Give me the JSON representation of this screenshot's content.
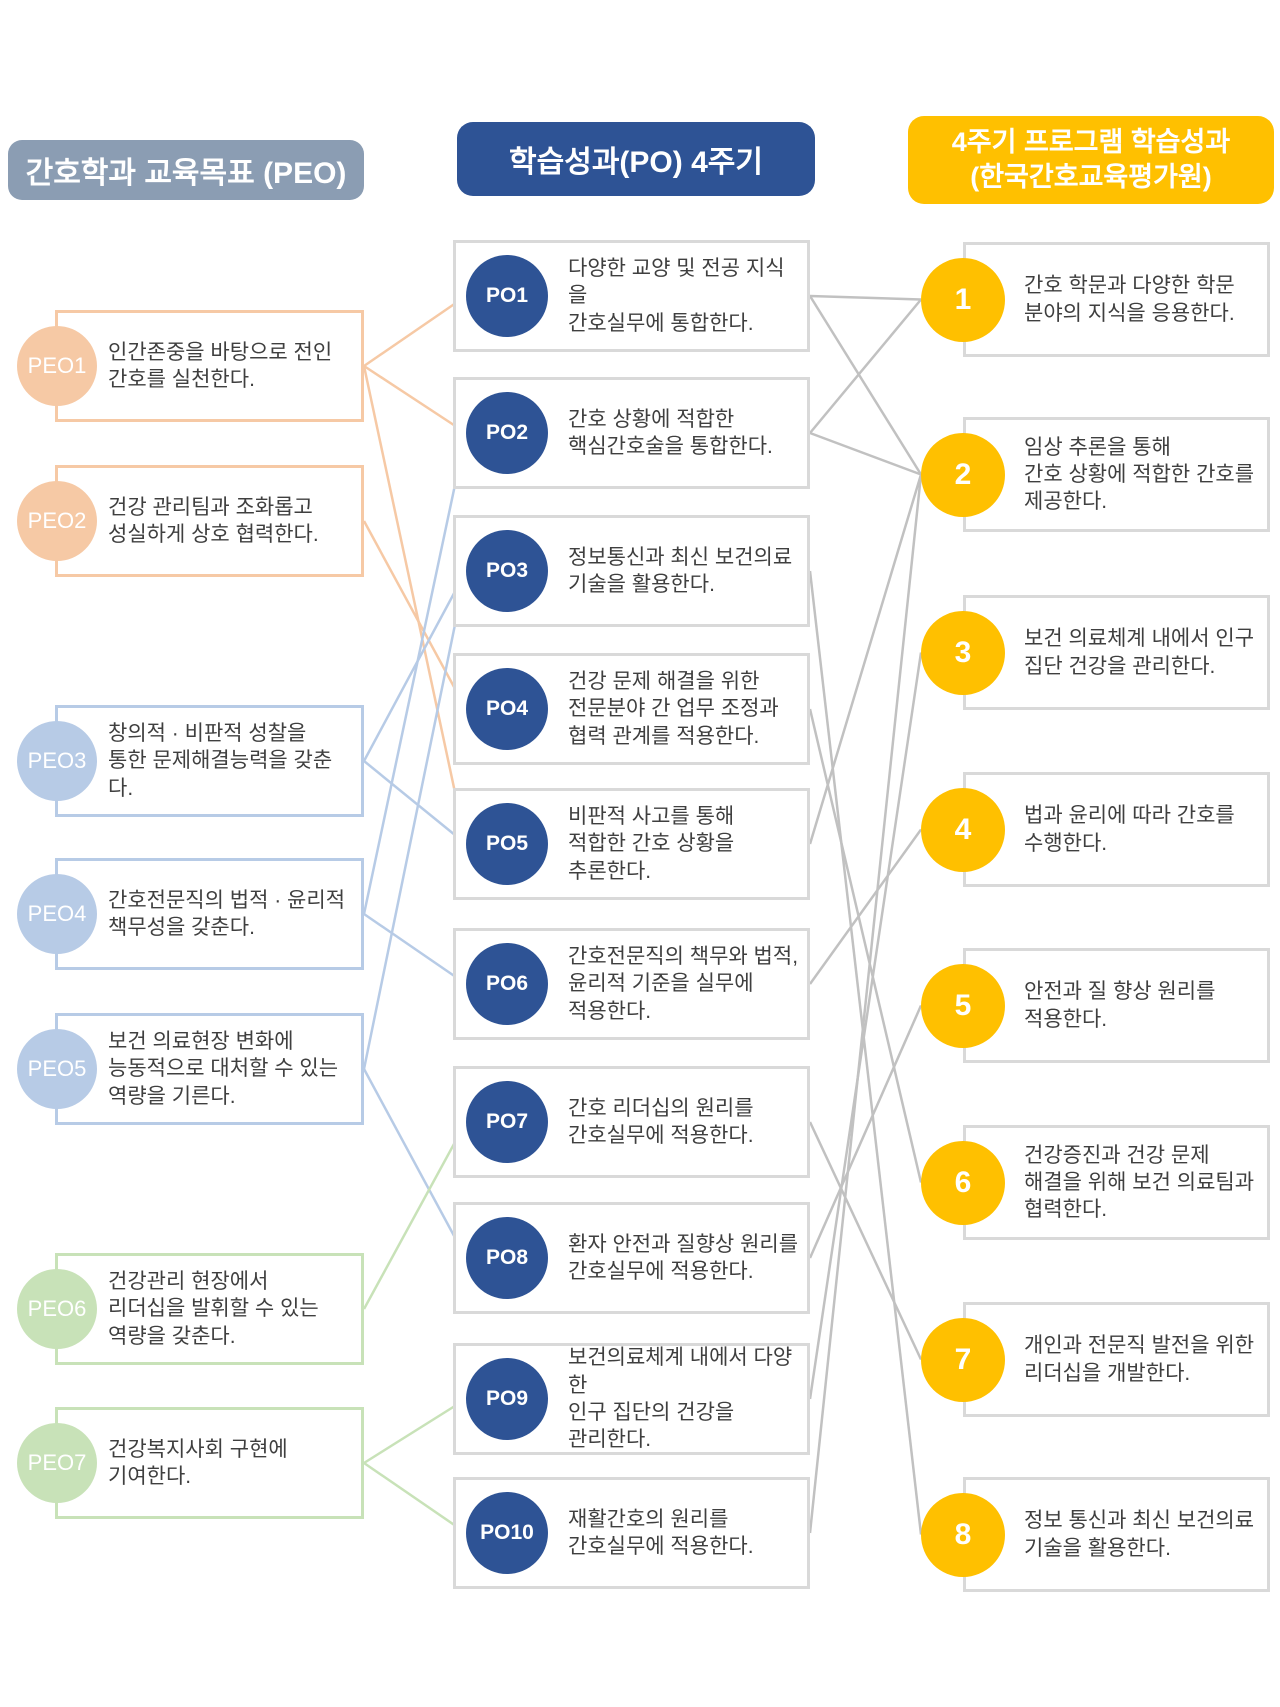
{
  "headers": {
    "peo": "간호학과 교육목표 (PEO)",
    "po": "학습성과(PO) 4주기",
    "program": "4주기 프로그램 학습성과\n(한국간호교육평가원)"
  },
  "palette": {
    "peo_header_bg": "#8B9DB3",
    "po_header_bg": "#2E5395",
    "program_header_bg": "#FFC000",
    "po_circle_fill": "#2E5395",
    "outcome_circle_fill": "#FFC000",
    "peo_orange": "#F6C9A5",
    "peo_blue": "#B7CBE6",
    "peo_green": "#C8E2B8",
    "gray_line": "#C1C1C1",
    "gray_box_border": "#D9D9D9",
    "text_color": "#3F3F3F"
  },
  "peo_items": [
    {
      "id": "PEO1",
      "group": "orange",
      "text": "인간존중을 바탕으로 전인\n간호를 실천한다."
    },
    {
      "id": "PEO2",
      "group": "orange",
      "text": "건강 관리팀과 조화롭고\n성실하게 상호 협력한다."
    },
    {
      "id": "PEO3",
      "group": "blue",
      "text": "창의적 · 비판적 성찰을\n통한 문제해결능력을 갖춘다."
    },
    {
      "id": "PEO4",
      "group": "blue",
      "text": "간호전문직의 법적 · 윤리적\n책무성을 갖춘다."
    },
    {
      "id": "PEO5",
      "group": "blue",
      "text": "보건 의료현장 변화에\n능동적으로 대처할 수 있는\n역량을 기른다."
    },
    {
      "id": "PEO6",
      "group": "green",
      "text": "건강관리 현장에서\n리더십을 발휘할 수 있는\n역량을 갖춘다."
    },
    {
      "id": "PEO7",
      "group": "green",
      "text": "건강복지사회 구현에\n기여한다."
    }
  ],
  "po_items": [
    {
      "id": "PO1",
      "text": "다양한 교양 및 전공 지식을\n간호실무에 통합한다."
    },
    {
      "id": "PO2",
      "text": "간호 상황에 적합한\n핵심간호술을 통합한다."
    },
    {
      "id": "PO3",
      "text": "정보통신과 최신 보건의료\n기술을 활용한다."
    },
    {
      "id": "PO4",
      "text": "건강 문제 해결을 위한\n전문분야 간 업무 조정과\n협력 관계를 적용한다."
    },
    {
      "id": "PO5",
      "text": "비판적 사고를 통해\n적합한 간호 상황을\n추론한다."
    },
    {
      "id": "PO6",
      "text": "간호전문직의 책무와 법적,\n윤리적 기준을 실무에\n적용한다."
    },
    {
      "id": "PO7",
      "text": "간호 리더십의 원리를\n간호실무에 적용한다."
    },
    {
      "id": "PO8",
      "text": "환자 안전과 질향상 원리를\n간호실무에 적용한다."
    },
    {
      "id": "PO9",
      "text": "보건의료체계 내에서 다양한\n인구 집단의 건강을\n관리한다."
    },
    {
      "id": "PO10",
      "text": "재활간호의 원리를\n간호실무에 적용한다."
    }
  ],
  "outcome_items": [
    {
      "id": "1",
      "text": "간호 학문과 다양한 학문\n분야의 지식을 응용한다."
    },
    {
      "id": "2",
      "text": "임상 추론을 통해\n간호 상황에 적합한 간호를\n제공한다."
    },
    {
      "id": "3",
      "text": "보건 의료체계 내에서 인구\n집단 건강을 관리한다."
    },
    {
      "id": "4",
      "text": "법과 윤리에 따라 간호를\n수행한다."
    },
    {
      "id": "5",
      "text": "안전과 질 향상 원리를\n적용한다."
    },
    {
      "id": "6",
      "text": "건강증진과 건강 문제\n해결을 위해 보건 의료팀과\n협력한다."
    },
    {
      "id": "7",
      "text": "개인과 전문직 발전을 위한\n리더십을 개발한다."
    },
    {
      "id": "8",
      "text": "정보 통신과 최신 보건의료\n기술을 활용한다."
    }
  ],
  "connections": {
    "peo_to_po": [
      [
        "PEO1",
        "PO1"
      ],
      [
        "PEO1",
        "PO2"
      ],
      [
        "PEO1",
        "PO5"
      ],
      [
        "PEO2",
        "PO4"
      ],
      [
        "PEO3",
        "PO3"
      ],
      [
        "PEO3",
        "PO5"
      ],
      [
        "PEO4",
        "PO2"
      ],
      [
        "PEO4",
        "PO6"
      ],
      [
        "PEO5",
        "PO3"
      ],
      [
        "PEO5",
        "PO8"
      ],
      [
        "PEO6",
        "PO7"
      ],
      [
        "PEO7",
        "PO9"
      ],
      [
        "PEO7",
        "PO10"
      ]
    ],
    "po_to_outcome": [
      [
        "PO1",
        "1"
      ],
      [
        "PO1",
        "2"
      ],
      [
        "PO2",
        "1"
      ],
      [
        "PO2",
        "2"
      ],
      [
        "PO3",
        "8"
      ],
      [
        "PO4",
        "6"
      ],
      [
        "PO5",
        "2"
      ],
      [
        "PO6",
        "4"
      ],
      [
        "PO7",
        "7"
      ],
      [
        "PO8",
        "5"
      ],
      [
        "PO9",
        "3"
      ],
      [
        "PO10",
        "2"
      ]
    ]
  }
}
